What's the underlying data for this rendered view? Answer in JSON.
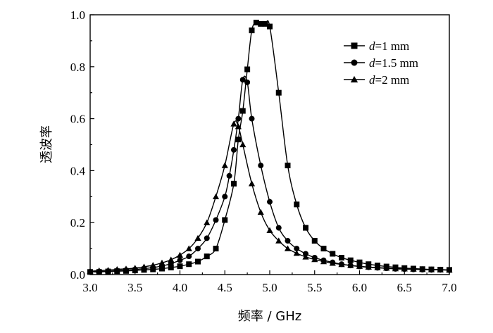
{
  "chart_data": {
    "type": "line",
    "title": "",
    "xlabel": "频率 / GHz",
    "ylabel": "透波率",
    "xlim": [
      3.0,
      7.0
    ],
    "ylim": [
      0.0,
      1.0
    ],
    "x_ticks": [
      "3.0",
      "3.5",
      "4.0",
      "4.5",
      "5.0",
      "5.5",
      "6.0",
      "6.5",
      "7.0"
    ],
    "y_ticks": [
      "0.0",
      "0.2",
      "0.4",
      "0.6",
      "0.8",
      "1.0"
    ],
    "grid": false,
    "legend_position": "top-right",
    "series": [
      {
        "name_var": "d",
        "name_rest": "=1 mm",
        "marker": "square",
        "x": [
          3.0,
          3.1,
          3.2,
          3.3,
          3.4,
          3.5,
          3.6,
          3.7,
          3.8,
          3.9,
          4.0,
          4.1,
          4.2,
          4.3,
          4.4,
          4.5,
          4.6,
          4.65,
          4.7,
          4.75,
          4.8,
          4.85,
          4.9,
          4.95,
          5.0,
          5.1,
          5.2,
          5.3,
          5.4,
          5.5,
          5.6,
          5.7,
          5.8,
          5.9,
          6.0,
          6.1,
          6.2,
          6.3,
          6.4,
          6.5,
          6.6,
          6.7,
          6.8,
          6.9,
          7.0
        ],
        "y": [
          0.01,
          0.01,
          0.012,
          0.013,
          0.014,
          0.016,
          0.018,
          0.02,
          0.023,
          0.027,
          0.032,
          0.04,
          0.05,
          0.07,
          0.1,
          0.21,
          0.35,
          0.52,
          0.63,
          0.79,
          0.94,
          0.97,
          0.965,
          0.965,
          0.955,
          0.7,
          0.42,
          0.27,
          0.18,
          0.13,
          0.1,
          0.08,
          0.065,
          0.055,
          0.047,
          0.04,
          0.035,
          0.031,
          0.028,
          0.025,
          0.023,
          0.021,
          0.02,
          0.019,
          0.018
        ]
      },
      {
        "name_var": "d",
        "name_rest": "=1.5 mm",
        "marker": "circle",
        "x": [
          3.0,
          3.1,
          3.2,
          3.3,
          3.4,
          3.5,
          3.6,
          3.7,
          3.8,
          3.9,
          4.0,
          4.1,
          4.2,
          4.3,
          4.4,
          4.5,
          4.55,
          4.6,
          4.65,
          4.7,
          4.75,
          4.8,
          4.9,
          5.0,
          5.1,
          5.2,
          5.3,
          5.4,
          5.5,
          5.6,
          5.7,
          5.8,
          5.9,
          6.0,
          6.1,
          6.2,
          6.3,
          6.4,
          6.5,
          6.6,
          6.7,
          6.8,
          6.9,
          7.0
        ],
        "y": [
          0.011,
          0.012,
          0.013,
          0.015,
          0.017,
          0.02,
          0.023,
          0.027,
          0.033,
          0.042,
          0.055,
          0.07,
          0.1,
          0.14,
          0.21,
          0.3,
          0.38,
          0.48,
          0.6,
          0.75,
          0.74,
          0.6,
          0.42,
          0.28,
          0.18,
          0.13,
          0.1,
          0.08,
          0.065,
          0.055,
          0.047,
          0.04,
          0.035,
          0.031,
          0.028,
          0.026,
          0.024,
          0.022,
          0.021,
          0.02,
          0.019,
          0.018,
          0.018,
          0.017
        ]
      },
      {
        "name_var": "d",
        "name_rest": "=2 mm",
        "marker": "triangle",
        "x": [
          3.0,
          3.1,
          3.2,
          3.3,
          3.4,
          3.5,
          3.6,
          3.7,
          3.8,
          3.9,
          4.0,
          4.1,
          4.2,
          4.3,
          4.4,
          4.5,
          4.6,
          4.65,
          4.7,
          4.8,
          4.9,
          5.0,
          5.1,
          5.2,
          5.3,
          5.4,
          5.5,
          5.6,
          5.7,
          5.8,
          5.9,
          6.0,
          6.1,
          6.2,
          6.3,
          6.4,
          6.5,
          6.6,
          6.7,
          6.8,
          6.9,
          7.0
        ],
        "y": [
          0.013,
          0.015,
          0.017,
          0.02,
          0.022,
          0.025,
          0.03,
          0.036,
          0.045,
          0.057,
          0.075,
          0.1,
          0.14,
          0.2,
          0.3,
          0.42,
          0.58,
          0.57,
          0.5,
          0.35,
          0.24,
          0.17,
          0.13,
          0.1,
          0.082,
          0.068,
          0.058,
          0.05,
          0.044,
          0.039,
          0.035,
          0.032,
          0.029,
          0.027,
          0.025,
          0.023,
          0.022,
          0.021,
          0.02,
          0.019,
          0.018,
          0.018
        ]
      }
    ]
  }
}
